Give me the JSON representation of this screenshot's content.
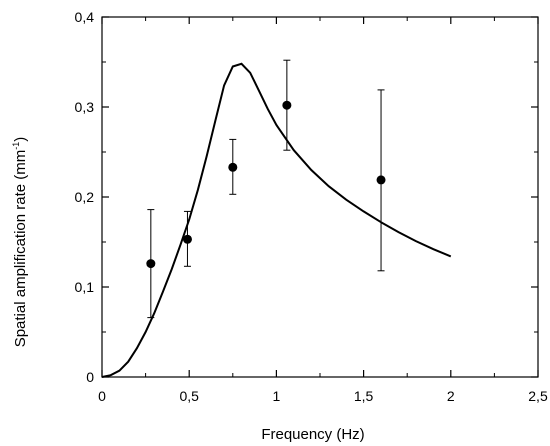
{
  "chart_data": {
    "type": "scatter",
    "title": "",
    "xlabel": "Frequency (Hz)",
    "ylabel": {
      "main": "Spatial amplification rate (mm",
      "sup": "-1",
      "end": ")"
    },
    "xlim": [
      0,
      2.5
    ],
    "ylim": [
      0,
      0.4
    ],
    "xticks": [
      0,
      0.5,
      1,
      1.5,
      2,
      2.5
    ],
    "xtick_labels": [
      "0",
      "0,5",
      "1",
      "1,5",
      "2",
      "2,5"
    ],
    "yticks": [
      0,
      0.1,
      0.2,
      0.3,
      0.4
    ],
    "ytick_labels": [
      "0",
      "0,1",
      "0,2",
      "0,3",
      "0,4"
    ],
    "grid": false,
    "series": [
      {
        "kind": "points_with_error_bars",
        "points": [
          {
            "x": 0.28,
            "y": 0.126,
            "err_low": 0.066,
            "err_high": 0.186
          },
          {
            "x": 0.49,
            "y": 0.153,
            "err_low": 0.123,
            "err_high": 0.184
          },
          {
            "x": 0.75,
            "y": 0.233,
            "err_low": 0.203,
            "err_high": 0.264
          },
          {
            "x": 1.06,
            "y": 0.302,
            "err_low": 0.252,
            "err_high": 0.352
          },
          {
            "x": 1.6,
            "y": 0.219,
            "err_low": 0.118,
            "err_high": 0.319
          }
        ]
      },
      {
        "kind": "line",
        "x": [
          0,
          0.05,
          0.1,
          0.15,
          0.2,
          0.25,
          0.3,
          0.35,
          0.4,
          0.45,
          0.5,
          0.55,
          0.6,
          0.65,
          0.7,
          0.75,
          0.8,
          0.85,
          0.9,
          0.95,
          1.0,
          1.1,
          1.2,
          1.3,
          1.4,
          1.5,
          1.6,
          1.7,
          1.8,
          1.9,
          2.0
        ],
        "y": [
          0,
          0.002,
          0.007,
          0.017,
          0.032,
          0.05,
          0.071,
          0.095,
          0.12,
          0.147,
          0.175,
          0.208,
          0.245,
          0.285,
          0.324,
          0.345,
          0.348,
          0.338,
          0.318,
          0.298,
          0.28,
          0.252,
          0.23,
          0.212,
          0.197,
          0.184,
          0.172,
          0.161,
          0.151,
          0.142,
          0.134
        ]
      }
    ]
  }
}
